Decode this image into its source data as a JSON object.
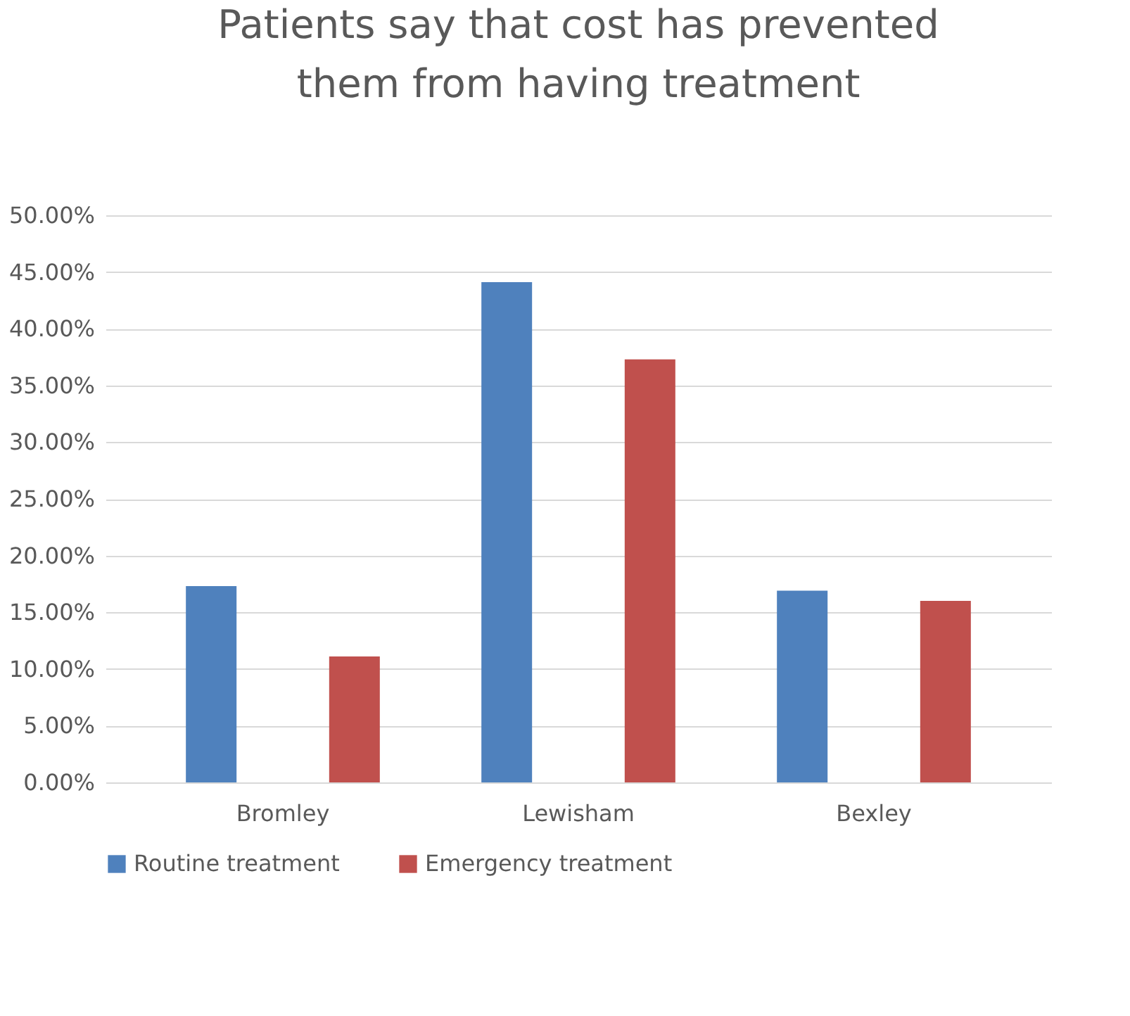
{
  "chart_data": {
    "type": "bar",
    "title": "Patients say that cost has prevented them from having treatment",
    "categories": [
      "Bromley",
      "Lewisham",
      "Bexley"
    ],
    "series": [
      {
        "name": "Routine treatment",
        "color": "#4f81bd",
        "values": [
          17.3,
          44.1,
          16.9
        ]
      },
      {
        "name": "Emergency treatment",
        "color": "#c0504d",
        "values": [
          11.1,
          37.3,
          16.0
        ]
      }
    ],
    "ylim": [
      0,
      50
    ],
    "yticks": [
      {
        "value": 0,
        "label": "0.00%"
      },
      {
        "value": 5,
        "label": "5.00%"
      },
      {
        "value": 10,
        "label": "10.00%"
      },
      {
        "value": 15,
        "label": "15.00%"
      },
      {
        "value": 20,
        "label": "20.00%"
      },
      {
        "value": 25,
        "label": "25.00%"
      },
      {
        "value": 30,
        "label": "30.00%"
      },
      {
        "value": 35,
        "label": "35.00%"
      },
      {
        "value": 40,
        "label": "40.00%"
      },
      {
        "value": 45,
        "label": "45.00%"
      },
      {
        "value": 50,
        "label": "50.00%"
      }
    ],
    "grid": "y",
    "legend": "bottom"
  }
}
